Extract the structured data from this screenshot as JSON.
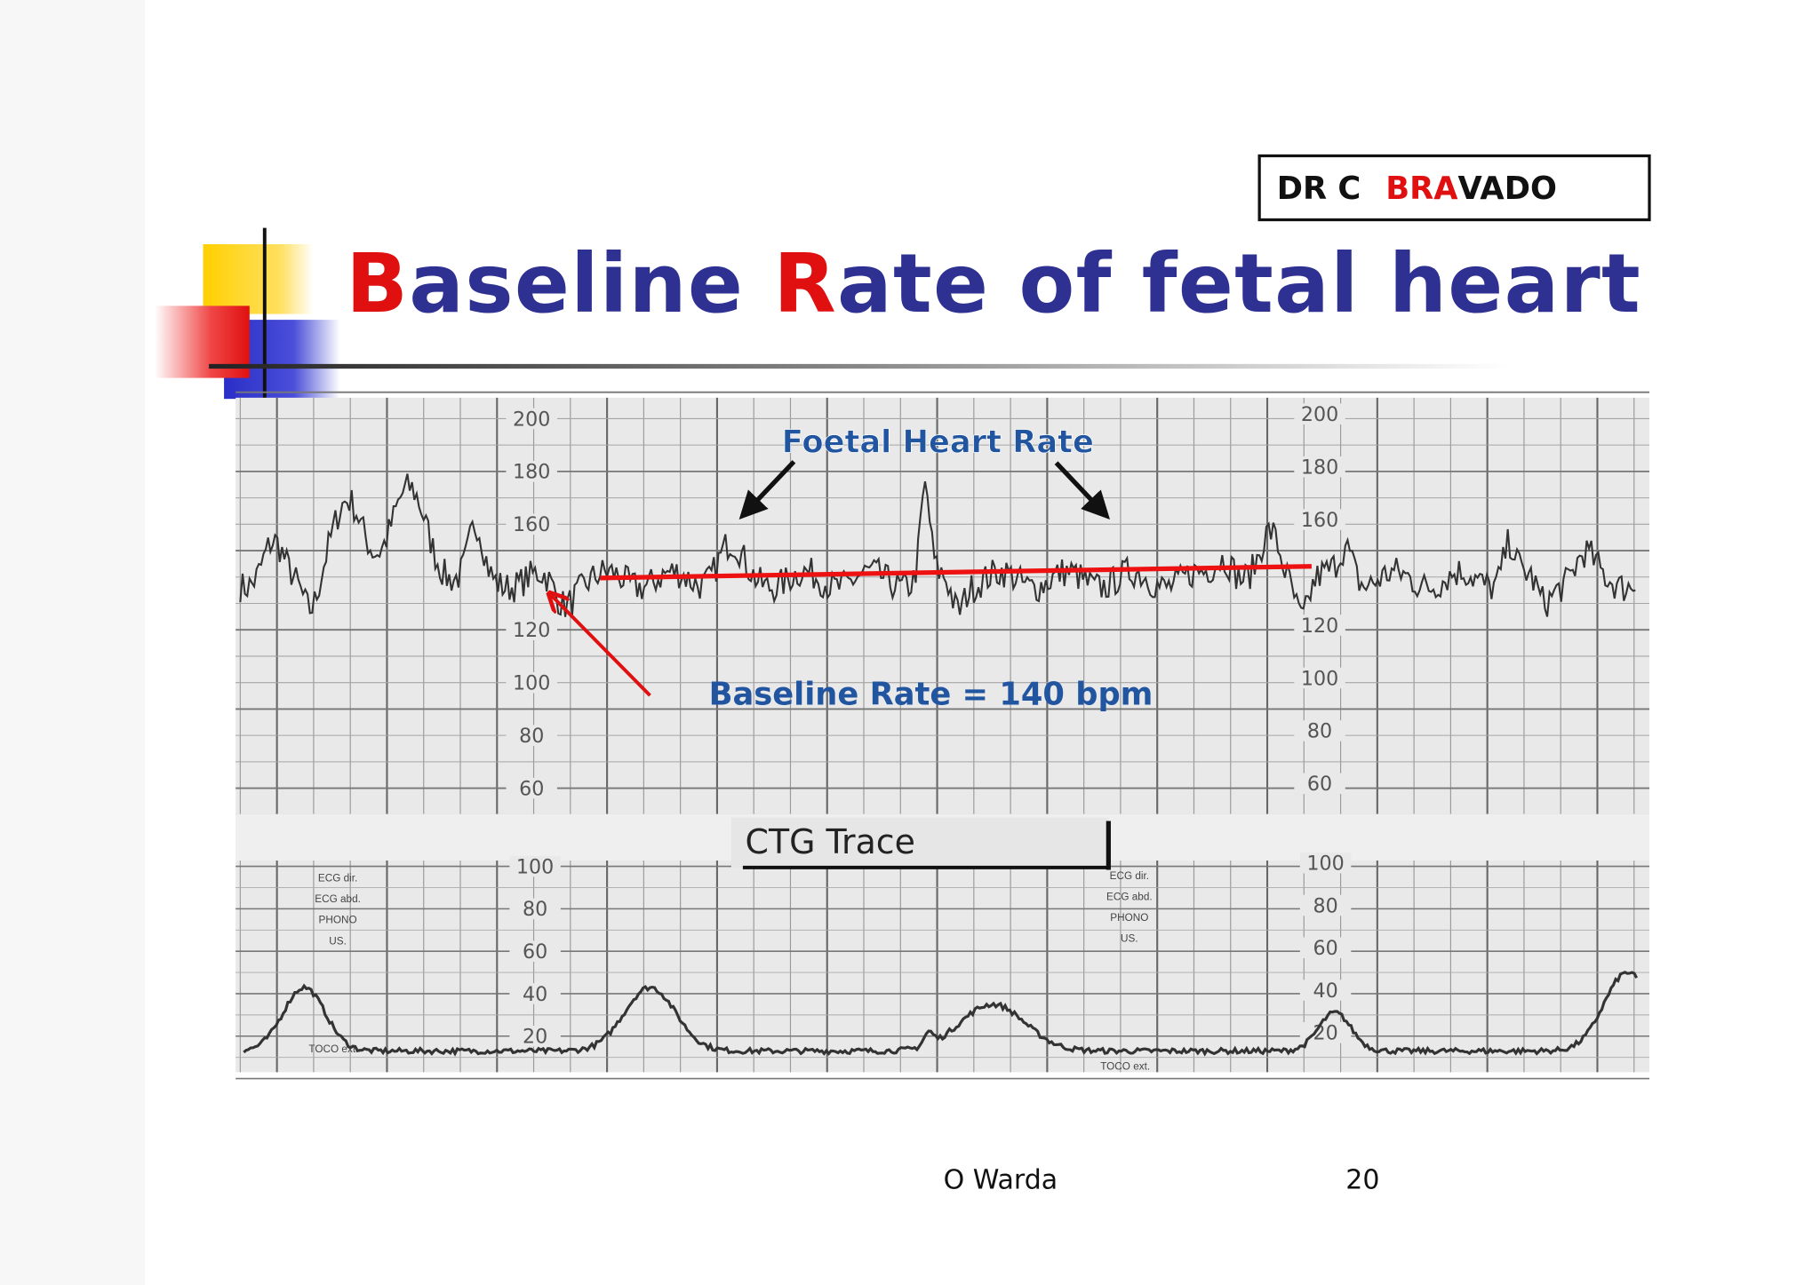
{
  "badge": {
    "parts": [
      "DR C ",
      "BRA",
      "VADO"
    ]
  },
  "title": {
    "parts": [
      "B",
      "aseline ",
      "R",
      "ate of fetal heart"
    ]
  },
  "ctg": {
    "fhr_label": "Foetal Heart Rate",
    "baseline_label": "Baseline Rate = 140 bpm",
    "trace_label": "CTG Trace",
    "fhr_scale_left": [
      200,
      180,
      160,
      120,
      100,
      80,
      60
    ],
    "fhr_scale_right": [
      200,
      180,
      160,
      120,
      100,
      80,
      60
    ],
    "toco_scale_left": [
      100,
      80,
      60,
      40,
      20
    ],
    "toco_scale_right": [
      100,
      80,
      60,
      40,
      20
    ],
    "channels_left": [
      "ECG dir.",
      "ECG abd.",
      "PHONO",
      "US."
    ],
    "channels_right": [
      "ECG dir.",
      "ECG abd.",
      "PHONO",
      "US."
    ],
    "toco_left": "TOCO ext.",
    "toco_right": "TOCO ext."
  },
  "footer": {
    "author": "O Warda",
    "page": "20"
  }
}
